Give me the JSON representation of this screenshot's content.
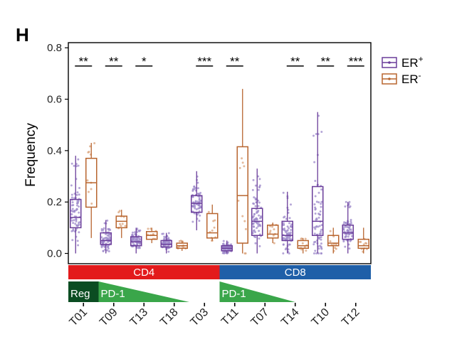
{
  "panel_label": "H",
  "colors": {
    "er_pos": "#6a3d9a",
    "er_pos_jitter": "#9c88c9",
    "er_neg": "#b8652f",
    "er_neg_jitter": "#d9a27a",
    "cd4_bar": "#e31a1c",
    "cd8_bar": "#1f5fa8",
    "reg_fill": "#0b4d22",
    "pd1_fill": "#3aa64a",
    "axis": "#000000"
  },
  "groups": [
    {
      "label": "CD4",
      "from": 0,
      "to": 5
    },
    {
      "label": "CD8",
      "from": 5,
      "to": 10
    }
  ],
  "annotations": [
    {
      "label": "Reg",
      "type": "block",
      "from": 0,
      "to": 1
    },
    {
      "label": "PD-1",
      "type": "triangle",
      "from": 1,
      "to": 4
    },
    {
      "label": "PD-1",
      "type": "triangle",
      "from": 5,
      "to": 7.5
    }
  ],
  "chart_data": {
    "type": "box",
    "title": "",
    "xlabel": "",
    "ylabel": "Frequency",
    "ylim": [
      -0.04,
      0.82
    ],
    "yticks": [
      "0.0",
      "0.2",
      "0.4",
      "0.6",
      "0.8"
    ],
    "ytick_values": [
      0.0,
      0.2,
      0.4,
      0.6,
      0.8
    ],
    "categories": [
      "T01",
      "T09",
      "T13",
      "T18",
      "T03",
      "T11",
      "T07",
      "T14",
      "T10",
      "T12"
    ],
    "legend": {
      "position": "right",
      "entries": [
        {
          "base": "ER",
          "sup": "+"
        },
        {
          "base": "ER",
          "sup": "-"
        }
      ]
    },
    "significance": [
      "**",
      "**",
      "*",
      "",
      "***",
      "**",
      "",
      "**",
      "**",
      "***"
    ],
    "series": [
      {
        "name": "ER+",
        "boxes": [
          {
            "q1": 0.1,
            "median": 0.14,
            "q3": 0.21,
            "wlow": 0.0,
            "whigh": 0.38
          },
          {
            "q1": 0.035,
            "median": 0.05,
            "q3": 0.08,
            "wlow": 0.0,
            "whigh": 0.13
          },
          {
            "q1": 0.03,
            "median": 0.045,
            "q3": 0.065,
            "wlow": 0.0,
            "whigh": 0.1
          },
          {
            "q1": 0.025,
            "median": 0.035,
            "q3": 0.05,
            "wlow": 0.0,
            "whigh": 0.08
          },
          {
            "q1": 0.16,
            "median": 0.195,
            "q3": 0.225,
            "wlow": 0.09,
            "whigh": 0.32
          },
          {
            "q1": 0.01,
            "median": 0.02,
            "q3": 0.03,
            "wlow": 0.0,
            "whigh": 0.05
          },
          {
            "q1": 0.07,
            "median": 0.125,
            "q3": 0.175,
            "wlow": 0.0,
            "whigh": 0.33
          },
          {
            "q1": 0.05,
            "median": 0.07,
            "q3": 0.125,
            "wlow": 0.0,
            "whigh": 0.24
          },
          {
            "q1": 0.07,
            "median": 0.125,
            "q3": 0.26,
            "wlow": 0.0,
            "whigh": 0.55
          },
          {
            "q1": 0.055,
            "median": 0.08,
            "q3": 0.11,
            "wlow": 0.0,
            "whigh": 0.2
          }
        ]
      },
      {
        "name": "ER-",
        "boxes": [
          {
            "q1": 0.18,
            "median": 0.275,
            "q3": 0.37,
            "wlow": 0.06,
            "whigh": 0.43
          },
          {
            "q1": 0.1,
            "median": 0.125,
            "q3": 0.145,
            "wlow": 0.06,
            "whigh": 0.17
          },
          {
            "q1": 0.055,
            "median": 0.07,
            "q3": 0.085,
            "wlow": 0.04,
            "whigh": 0.1
          },
          {
            "q1": 0.02,
            "median": 0.03,
            "q3": 0.04,
            "wlow": 0.01,
            "whigh": 0.05
          },
          {
            "q1": 0.06,
            "median": 0.08,
            "q3": 0.155,
            "wlow": 0.05,
            "whigh": 0.19
          },
          {
            "q1": 0.04,
            "median": 0.225,
            "q3": 0.415,
            "wlow": 0.0,
            "whigh": 0.64
          },
          {
            "q1": 0.06,
            "median": 0.075,
            "q3": 0.11,
            "wlow": 0.04,
            "whigh": 0.12
          },
          {
            "q1": 0.02,
            "median": 0.03,
            "q3": 0.05,
            "wlow": 0.0,
            "whigh": 0.06
          },
          {
            "q1": 0.03,
            "median": 0.04,
            "q3": 0.07,
            "wlow": 0.0,
            "whigh": 0.1
          },
          {
            "q1": 0.02,
            "median": 0.03,
            "q3": 0.055,
            "wlow": 0.0,
            "whigh": 0.1
          }
        ]
      }
    ]
  }
}
